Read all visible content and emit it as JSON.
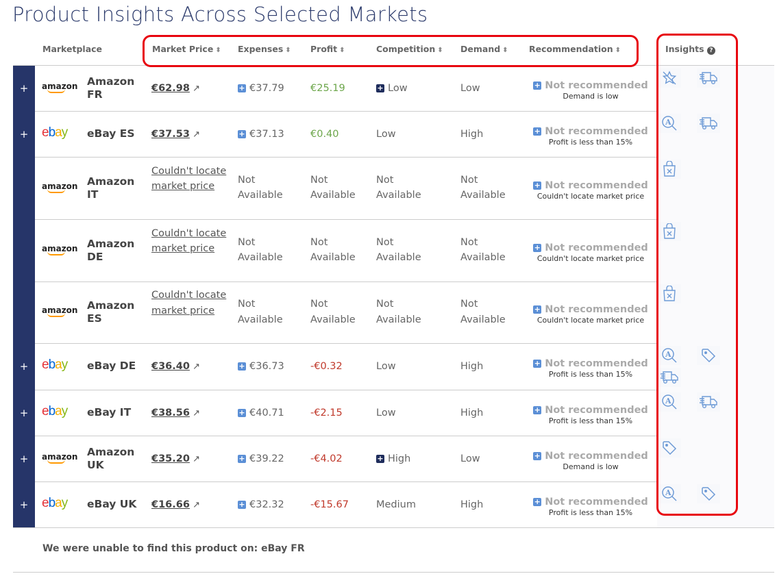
{
  "title": "Product Insights Across Selected Markets",
  "headers": {
    "marketplace": "Marketplace",
    "market_price": "Market Price",
    "expenses": "Expenses",
    "profit": "Profit",
    "competition": "Competition",
    "demand": "Demand",
    "recommendation": "Recommendation",
    "insights": "Insights"
  },
  "colors": {
    "nav": "#263569",
    "accent": "#5b8fd6",
    "positive": "#6ca64a",
    "negative": "#c0392b",
    "annotation": "#e8050f"
  },
  "rows": [
    {
      "logo": "amazon",
      "name": "Amazon FR",
      "expandable": true,
      "price": "€62.98",
      "expenses": "€37.79",
      "profit": "€25.19",
      "profit_sign": "pos",
      "competition": "Low",
      "competition_expand": true,
      "demand": "Low",
      "recommendation": "Not recommended",
      "reason": "Demand is low",
      "insights": [
        "star-off-icon",
        "truck-icon"
      ]
    },
    {
      "logo": "ebay",
      "name": "eBay ES",
      "expandable": true,
      "price": "€37.53",
      "expenses": "€37.13",
      "profit": "€0.40",
      "profit_sign": "pos",
      "competition": "Low",
      "demand": "High",
      "recommendation": "Not recommended",
      "reason": "Profit is less than 15%",
      "insights": [
        "search-a-icon",
        "truck-icon"
      ]
    },
    {
      "logo": "amazon",
      "name": "Amazon IT",
      "expandable": false,
      "price": "Couldn't locate market price",
      "expenses": "Not Available",
      "profit": "Not Available",
      "competition": "Not Available",
      "demand": "Not Available",
      "recommendation": "Not recommended",
      "reason": "Couldn't locate market price",
      "insights": [
        "bag-x-icon"
      ]
    },
    {
      "logo": "amazon",
      "name": "Amazon DE",
      "expandable": false,
      "price": "Couldn't locate market price",
      "expenses": "Not Available",
      "profit": "Not Available",
      "competition": "Not Available",
      "demand": "Not Available",
      "recommendation": "Not recommended",
      "reason": "Couldn't locate market price",
      "insights": [
        "bag-x-icon"
      ]
    },
    {
      "logo": "amazon",
      "name": "Amazon ES",
      "expandable": false,
      "price": "Couldn't locate market price",
      "expenses": "Not Available",
      "profit": "Not Available",
      "competition": "Not Available",
      "demand": "Not Available",
      "recommendation": "Not recommended",
      "reason": "Couldn't locate market price",
      "insights": [
        "bag-x-icon"
      ]
    },
    {
      "logo": "ebay",
      "name": "eBay DE",
      "expandable": true,
      "price": "€36.40",
      "expenses": "€36.73",
      "profit": "-€0.32",
      "profit_sign": "neg",
      "competition": "Low",
      "demand": "High",
      "recommendation": "Not recommended",
      "reason": "Profit is less than 15%",
      "insights": [
        "search-a-icon",
        "tag-icon",
        "truck-icon"
      ]
    },
    {
      "logo": "ebay",
      "name": "eBay IT",
      "expandable": true,
      "price": "€38.56",
      "expenses": "€40.71",
      "profit": "-€2.15",
      "profit_sign": "neg",
      "competition": "Low",
      "demand": "High",
      "recommendation": "Not recommended",
      "reason": "Profit is less than 15%",
      "insights": [
        "search-a-icon",
        "truck-icon"
      ]
    },
    {
      "logo": "amazon",
      "name": "Amazon UK",
      "expandable": true,
      "price": "€35.20",
      "expenses": "€39.22",
      "profit": "-€4.02",
      "profit_sign": "neg",
      "competition": "High",
      "competition_expand": true,
      "demand": "Low",
      "recommendation": "Not recommended",
      "reason": "Demand is low",
      "insights": [
        "tag-icon"
      ]
    },
    {
      "logo": "ebay",
      "name": "eBay UK",
      "expandable": true,
      "price": "€16.66",
      "expenses": "€32.32",
      "profit": "-€15.67",
      "profit_sign": "neg",
      "competition": "Medium",
      "demand": "High",
      "recommendation": "Not recommended",
      "reason": "Profit is less than 15%",
      "insights": [
        "search-a-icon",
        "tag-icon"
      ]
    }
  ],
  "logos": {
    "amazon": "amazon",
    "ebay": "ebay"
  },
  "footer": "We were unable to find this product on: eBay FR"
}
